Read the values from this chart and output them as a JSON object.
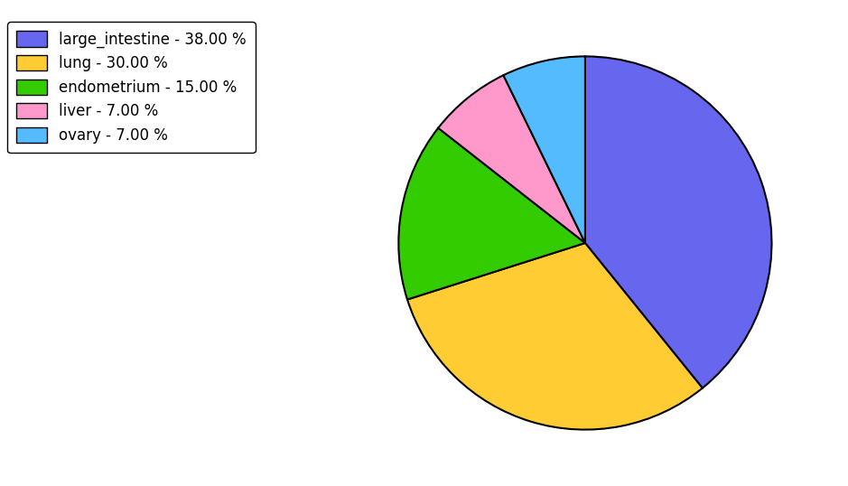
{
  "labels": [
    "large_intestine",
    "lung",
    "endometrium",
    "liver",
    "ovary"
  ],
  "values": [
    38.0,
    30.0,
    15.0,
    7.0,
    7.0
  ],
  "colors": [
    "#6666ee",
    "#ffcc33",
    "#33cc00",
    "#ff99cc",
    "#55bbff"
  ],
  "legend_labels": [
    "large_intestine - 38.00 %",
    "lung - 30.00 %",
    "endometrium - 15.00 %",
    "liver - 7.00 %",
    "ovary - 7.00 %"
  ],
  "startangle": 90,
  "background_color": "#ffffff",
  "legend_fontsize": 12,
  "figsize": [
    9.39,
    5.38
  ],
  "dpi": 100
}
